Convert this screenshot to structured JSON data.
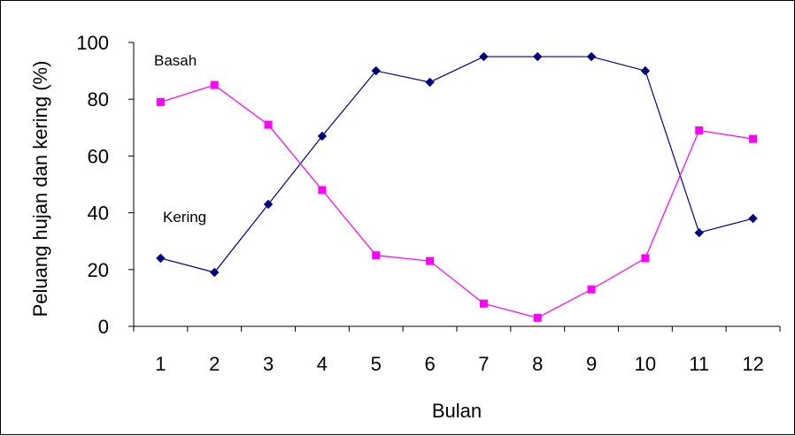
{
  "chart_data": {
    "type": "line",
    "title": "",
    "xlabel": "Bulan",
    "ylabel": "Peluang hujan dan kering (%)",
    "categories": [
      "1",
      "2",
      "3",
      "4",
      "5",
      "6",
      "7",
      "8",
      "9",
      "10",
      "11",
      "12"
    ],
    "ylim": [
      0,
      100
    ],
    "yticks": [
      "0",
      "20",
      "40",
      "60",
      "80",
      "100"
    ],
    "grid": false,
    "legend": "none",
    "series": [
      {
        "name": "Basah",
        "color": "#000080",
        "marker": "diamond",
        "values": [
          24,
          19,
          43,
          67,
          90,
          86,
          95,
          95,
          95,
          90,
          33,
          38
        ]
      },
      {
        "name": "Kering",
        "color": "#ff00ff",
        "marker": "square",
        "values": [
          79,
          85,
          71,
          48,
          25,
          23,
          8,
          3,
          13,
          24,
          69,
          66
        ]
      }
    ],
    "annotations": [
      "Basah",
      "Kering"
    ]
  }
}
